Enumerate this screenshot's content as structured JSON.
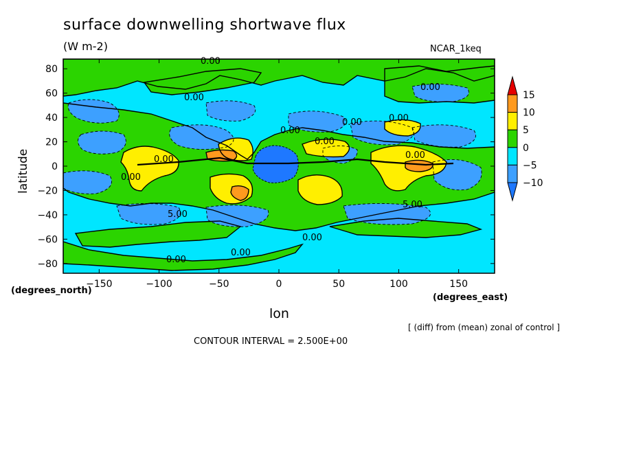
{
  "chart_data": {
    "type": "heatmap",
    "title": "surface downwelling shortwave flux",
    "units": "(W m-2)",
    "run_label": "NCAR_1keq",
    "xlabel": "lon",
    "ylabel": "latitude",
    "x_units_label": "(degrees_east)",
    "y_units_label": "(degrees_north)",
    "note": "[ (diff) from (mean) zonal of control ]",
    "contour_interval_text": "CONTOUR INTERVAL = 2.500E+00",
    "xlim": [
      -180,
      180
    ],
    "ylim": [
      -88,
      88
    ],
    "x_ticks": [
      -150,
      -100,
      -50,
      0,
      50,
      100,
      150
    ],
    "x_tick_labels": [
      "−150",
      "−100",
      "−50",
      "0",
      "50",
      "100",
      "150"
    ],
    "y_ticks": [
      -80,
      -60,
      -40,
      -20,
      0,
      20,
      40,
      60,
      80
    ],
    "y_tick_labels": [
      "−80",
      "−60",
      "−40",
      "−20",
      "0",
      "20",
      "40",
      "60",
      "80"
    ],
    "colorbar": {
      "levels": [
        -10,
        -5,
        0,
        5,
        10,
        15
      ],
      "level_labels": [
        "−10",
        "−5",
        "0",
        "5",
        "10",
        "15"
      ],
      "colors": {
        "below_-10": "#1e78ff",
        "-10_to_-5": "#3da0ff",
        "-5_to_0": "#00e6ff",
        "0_to_5": "#2bd400",
        "5_to_10": "#ffef00",
        "10_to_15": "#ff9a1e",
        "above_15": "#e60000"
      }
    },
    "contour_labels": [
      "0.00",
      "0.00",
      "0.00",
      "0.00",
      "0.00",
      "0.00",
      "0.00",
      "0.00",
      "0.00",
      "5.00",
      "5.00",
      "0.00",
      "0.00",
      "0.00",
      "0.00"
    ],
    "background_field": "-5_to_0"
  }
}
